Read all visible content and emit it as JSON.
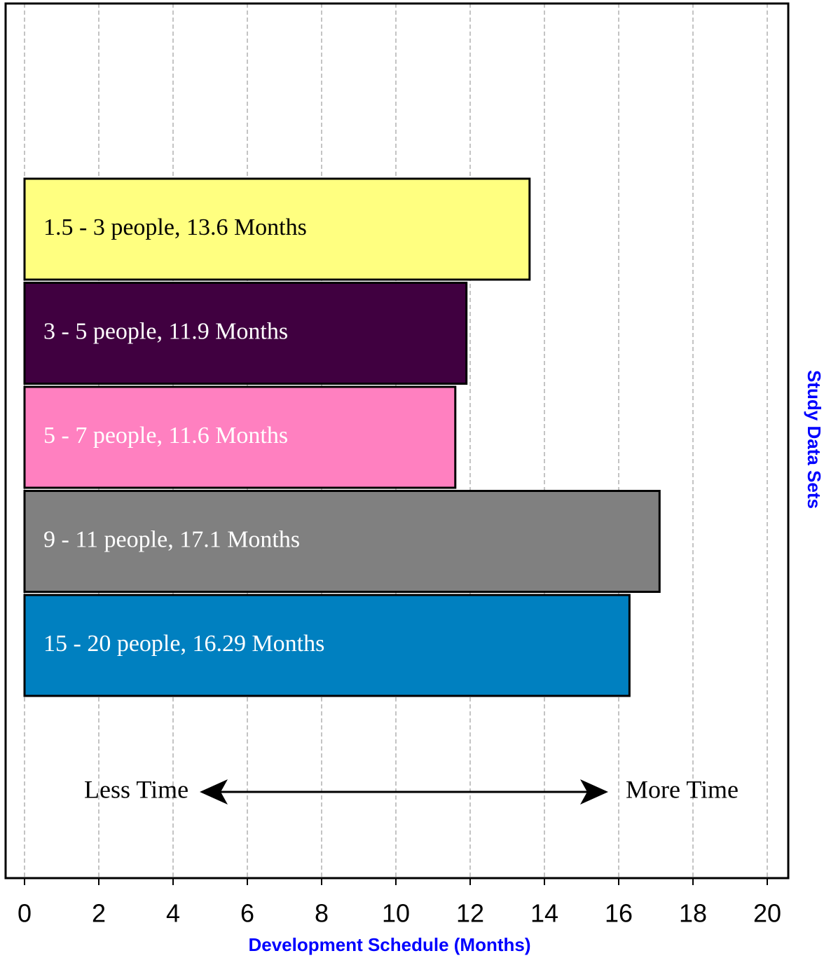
{
  "chart_data": {
    "type": "hbar",
    "values": [
      13.6,
      11.9,
      11.6,
      17.1,
      16.29
    ],
    "value_labels": [
      "1.5 - 3 people, 13.6 Months",
      "3 - 5 people, 11.9 Months",
      "5 - 7 people, 11.6 Months",
      "9 - 11 people, 17.1 Months",
      "15 - 20 people, 16.29 Months"
    ],
    "colors": [
      "#ffff80",
      "#400040",
      "#ff80c0",
      "#808080",
      "#0080c0"
    ],
    "label_colors": [
      "#000000",
      "#ffffff",
      "#ffffff",
      "#ffffff",
      "#ffffff"
    ],
    "xlabel": "Development Schedule (Months)",
    "ylabel": "Study Data Sets",
    "xlim": [
      0,
      20
    ],
    "xticks": [
      0,
      2,
      4,
      6,
      8,
      10,
      12,
      14,
      16,
      18,
      20
    ],
    "grid": true,
    "annotations": [
      "Less Time",
      "More Time"
    ]
  }
}
